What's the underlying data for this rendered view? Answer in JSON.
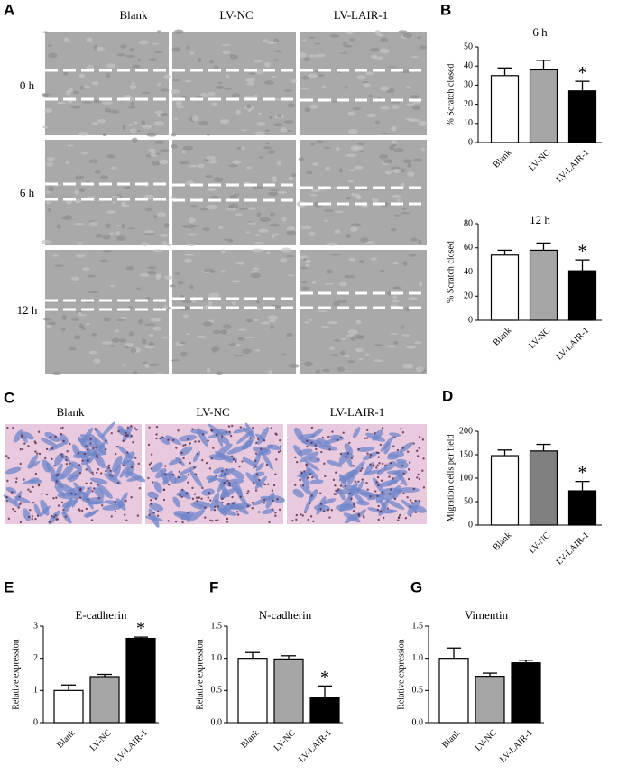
{
  "panels": {
    "A": {
      "letter": "A",
      "columns": [
        "Blank",
        "LV-NC",
        "LV-LAIR-1"
      ],
      "rows": [
        "0 h",
        "6 h",
        "12 h"
      ]
    },
    "C": {
      "letter": "C",
      "columns": [
        "Blank",
        "LV-NC",
        "LV-LAIR-1"
      ]
    }
  },
  "chart_data": [
    {
      "type": "bar",
      "panel": "B",
      "title": "6 h",
      "y_label": "% Scratch closed",
      "categories": [
        "Blank",
        "LV-NC",
        "LV-LAIR-1"
      ],
      "values": [
        35,
        38,
        27
      ],
      "errors": [
        4,
        5,
        5
      ],
      "colors": [
        "#ffffff",
        "#a6a6a6",
        "#000000"
      ],
      "significance": [
        null,
        null,
        "*"
      ],
      "ylim": [
        0,
        50
      ],
      "yticks": [
        0,
        10,
        20,
        30,
        40,
        50
      ]
    },
    {
      "type": "bar",
      "title": "12 h",
      "y_label": "% Scratch closed",
      "categories": [
        "Blank",
        "LV-NC",
        "LV-LAIR-1"
      ],
      "values": [
        54,
        58,
        41
      ],
      "errors": [
        4,
        6,
        9
      ],
      "colors": [
        "#ffffff",
        "#a6a6a6",
        "#000000"
      ],
      "significance": [
        null,
        null,
        "*"
      ],
      "ylim": [
        0,
        80
      ],
      "yticks": [
        0,
        20,
        40,
        60,
        80
      ]
    },
    {
      "type": "bar",
      "panel": "D",
      "y_label": "Migration cells per field",
      "categories": [
        "Blank",
        "LV-NC",
        "LV-LAIR-1"
      ],
      "values": [
        148,
        158,
        73
      ],
      "errors": [
        12,
        14,
        20
      ],
      "colors": [
        "#ffffff",
        "#808080",
        "#000000"
      ],
      "significance": [
        null,
        null,
        "*"
      ],
      "ylim": [
        0,
        200
      ],
      "yticks": [
        0,
        50,
        100,
        150,
        200
      ]
    },
    {
      "type": "bar",
      "panel": "E",
      "title": "E-cadherin",
      "y_label": "Relative expression",
      "categories": [
        "Blank",
        "LV-NC",
        "LV-LAIR-1"
      ],
      "values": [
        1.0,
        1.43,
        2.62
      ],
      "errors": [
        0.17,
        0.07,
        0.04
      ],
      "colors": [
        "#ffffff",
        "#a6a6a6",
        "#000000"
      ],
      "significance": [
        null,
        null,
        "*"
      ],
      "ylim": [
        0,
        3
      ],
      "yticks": [
        0,
        1,
        2,
        3
      ]
    },
    {
      "type": "bar",
      "panel": "F",
      "title": "N-cadherin",
      "y_label": "Relative expression",
      "categories": [
        "Blank",
        "LV-NC",
        "LV-LAIR-1"
      ],
      "values": [
        1.0,
        0.99,
        0.39
      ],
      "errors": [
        0.09,
        0.05,
        0.18
      ],
      "colors": [
        "#ffffff",
        "#a6a6a6",
        "#000000"
      ],
      "significance": [
        null,
        null,
        "*"
      ],
      "ylim": [
        0,
        1.5
      ],
      "yticks": [
        {
          "value": 0,
          "label": "0.0"
        },
        0.5,
        {
          "value": 1,
          "label": "1.0"
        },
        1.5
      ]
    },
    {
      "type": "bar",
      "panel": "G",
      "title": "Vimentin",
      "y_label": "Relative expression",
      "categories": [
        "Blank",
        "LV-NC",
        "LV-LAIR-1"
      ],
      "values": [
        1.0,
        0.72,
        0.93
      ],
      "errors": [
        0.16,
        0.05,
        0.04
      ],
      "colors": [
        "#ffffff",
        "#a6a6a6",
        "#000000"
      ],
      "significance": [
        null,
        null,
        null
      ],
      "ylim": [
        0,
        1.5
      ],
      "yticks": [
        {
          "value": 0,
          "label": "0.0"
        },
        0.5,
        {
          "value": 1,
          "label": "1.0"
        },
        1.5
      ]
    }
  ]
}
